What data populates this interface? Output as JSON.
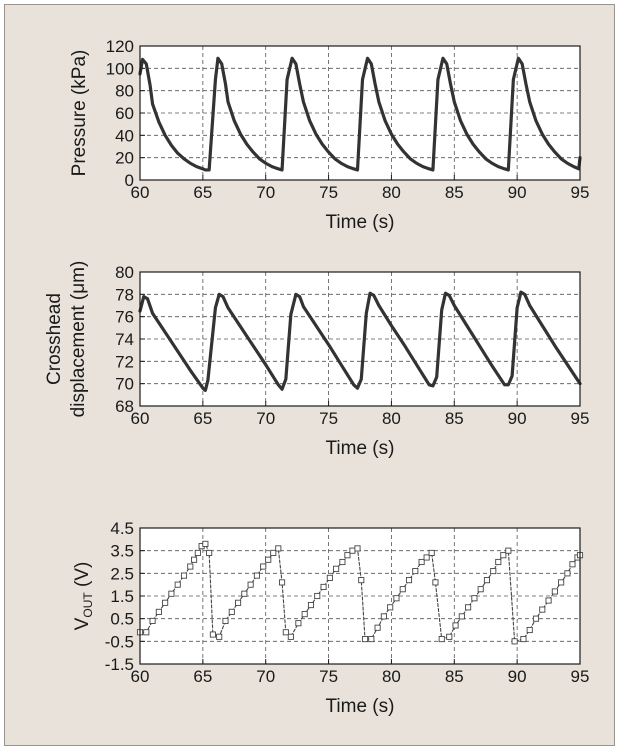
{
  "chart_data": [
    {
      "type": "line",
      "xlabel": "Time (s)",
      "ylabel": "Pressure (kPa)",
      "xlim": [
        60,
        95
      ],
      "ylim": [
        0,
        120
      ],
      "x_ticks": [
        "60",
        "65",
        "70",
        "75",
        "80",
        "85",
        "90",
        "95"
      ],
      "y_ticks": [
        "0",
        "20",
        "40",
        "60",
        "80",
        "100",
        "120"
      ],
      "grid": true,
      "line_color": "#333333",
      "series": [
        {
          "x": [
            60.0,
            60.2,
            60.5,
            60.8,
            61.0,
            61.5,
            62.0,
            62.5,
            63.0,
            63.5,
            64.0,
            64.5,
            65.0,
            65.2,
            65.5,
            66.0,
            66.2,
            66.5,
            66.8,
            67.0,
            67.5,
            68.0,
            68.5,
            69.0,
            69.5,
            70.0,
            70.5,
            71.0,
            71.3,
            71.7,
            72.1,
            72.4,
            72.7,
            73.0,
            73.5,
            74.0,
            74.5,
            75.0,
            75.5,
            76.0,
            76.5,
            77.0,
            77.3,
            77.7,
            78.1,
            78.4,
            78.7,
            79.0,
            79.5,
            80.0,
            80.5,
            81.0,
            81.5,
            82.0,
            82.5,
            83.0,
            83.3,
            83.7,
            84.1,
            84.4,
            84.7,
            85.0,
            85.5,
            86.0,
            86.5,
            87.0,
            87.5,
            88.0,
            88.5,
            89.0,
            89.3,
            89.7,
            90.1,
            90.4,
            90.7,
            91.0,
            91.5,
            92.0,
            92.5,
            93.0,
            93.5,
            94.0,
            94.5,
            94.9,
            95.0
          ],
          "y": [
            95,
            108,
            104,
            85,
            68,
            52,
            40,
            31,
            24,
            19,
            15,
            12,
            10,
            9,
            9,
            90,
            109,
            104,
            86,
            70,
            53,
            41,
            32,
            25,
            19,
            15,
            12,
            10,
            9,
            90,
            109,
            104,
            86,
            70,
            53,
            41,
            32,
            25,
            19,
            15,
            12,
            10,
            9,
            90,
            109,
            104,
            86,
            70,
            53,
            41,
            32,
            25,
            19,
            15,
            12,
            10,
            9,
            90,
            109,
            104,
            86,
            70,
            53,
            41,
            32,
            25,
            19,
            15,
            12,
            10,
            9,
            90,
            109,
            104,
            86,
            70,
            53,
            41,
            32,
            25,
            19,
            15,
            12,
            10,
            20
          ]
        }
      ]
    },
    {
      "type": "line",
      "xlabel": "Time (s)",
      "ylabel": [
        "Crosshead",
        "displacement (μm)"
      ],
      "xlim": [
        60,
        95
      ],
      "ylim": [
        68,
        80
      ],
      "x_ticks": [
        "60",
        "65",
        "70",
        "75",
        "80",
        "85",
        "90",
        "95"
      ],
      "y_ticks": [
        "68",
        "70",
        "72",
        "74",
        "76",
        "78",
        "80"
      ],
      "grid": true,
      "line_color": "#333333",
      "series": [
        {
          "x": [
            60.0,
            60.3,
            60.6,
            61.0,
            62.0,
            63.0,
            64.0,
            65.0,
            65.2,
            65.4,
            66.0,
            66.3,
            66.6,
            67.0,
            68.0,
            69.0,
            70.0,
            71.0,
            71.3,
            71.6,
            72.0,
            72.4,
            72.7,
            73.0,
            74.0,
            75.0,
            76.0,
            77.0,
            77.3,
            77.6,
            78.0,
            78.3,
            78.6,
            79.0,
            80.0,
            81.0,
            82.0,
            83.0,
            83.3,
            83.6,
            84.0,
            84.3,
            84.6,
            85.0,
            86.0,
            87.0,
            88.0,
            89.0,
            89.3,
            89.6,
            90.0,
            90.3,
            90.6,
            91.0,
            92.0,
            93.0,
            94.0,
            95.0
          ],
          "y": [
            76.5,
            77.8,
            77.6,
            76.3,
            74.6,
            72.9,
            71.2,
            69.6,
            69.4,
            70.3,
            76.8,
            78.0,
            77.8,
            76.8,
            75.1,
            73.4,
            71.7,
            69.9,
            69.5,
            70.4,
            76.2,
            78.0,
            77.8,
            76.9,
            75.2,
            73.5,
            71.7,
            69.9,
            69.6,
            70.4,
            76.3,
            78.1,
            77.9,
            77.0,
            75.2,
            73.5,
            71.7,
            69.9,
            69.8,
            70.6,
            76.6,
            78.1,
            77.9,
            77.0,
            75.2,
            73.4,
            71.6,
            69.9,
            69.9,
            70.7,
            76.8,
            78.2,
            78.0,
            77.0,
            75.2,
            73.4,
            71.7,
            70.0
          ]
        }
      ]
    },
    {
      "type": "line",
      "xlabel": "Time (s)",
      "ylabel": {
        "main": "V",
        "sub": "OUT",
        "unit": " (V)"
      },
      "xlim": [
        60,
        95
      ],
      "ylim": [
        -1.5,
        4.5
      ],
      "x_ticks": [
        "60",
        "65",
        "70",
        "75",
        "80",
        "85",
        "90",
        "95"
      ],
      "y_ticks": [
        "-1.5",
        "-0.5",
        "0.5",
        "1.5",
        "2.5",
        "3.5",
        "4.5"
      ],
      "y_tick_values": [
        -1.5,
        -0.5,
        0.5,
        1.5,
        2.5,
        3.5,
        4.5
      ],
      "grid": true,
      "line_style": "dashed",
      "marker": "square",
      "line_color": "#444444",
      "series": [
        {
          "x": [
            60.0,
            60.5,
            61.0,
            61.5,
            62.0,
            62.5,
            63.0,
            63.5,
            64.0,
            64.3,
            64.6,
            64.9,
            65.2,
            65.5,
            65.8,
            66.3,
            66.8,
            67.3,
            67.8,
            68.3,
            68.8,
            69.3,
            69.8,
            70.2,
            70.6,
            71.0,
            71.3,
            71.6,
            72.0,
            72.6,
            73.1,
            73.6,
            74.1,
            74.6,
            75.1,
            75.6,
            76.1,
            76.5,
            76.9,
            77.3,
            77.6,
            77.9,
            78.4,
            78.9,
            79.4,
            79.9,
            80.4,
            80.9,
            81.4,
            81.9,
            82.4,
            82.8,
            83.2,
            83.5,
            84.0,
            84.6,
            85.1,
            85.6,
            86.1,
            86.6,
            87.1,
            87.6,
            88.1,
            88.5,
            88.9,
            89.3,
            89.8,
            90.5,
            91.0,
            91.5,
            92.0,
            92.5,
            93.0,
            93.5,
            94.0,
            94.4,
            94.8,
            95.0
          ],
          "y": [
            -0.1,
            -0.1,
            0.4,
            0.8,
            1.2,
            1.6,
            2.0,
            2.4,
            2.8,
            3.1,
            3.4,
            3.7,
            3.8,
            3.4,
            -0.2,
            -0.3,
            0.4,
            0.8,
            1.2,
            1.6,
            2.0,
            2.4,
            2.8,
            3.1,
            3.4,
            3.6,
            2.1,
            -0.1,
            -0.3,
            0.3,
            0.7,
            1.1,
            1.5,
            1.9,
            2.3,
            2.7,
            3.0,
            3.3,
            3.5,
            3.6,
            2.2,
            -0.4,
            -0.4,
            0.1,
            0.6,
            1.0,
            1.4,
            1.8,
            2.2,
            2.6,
            3.0,
            3.2,
            3.4,
            2.1,
            -0.4,
            -0.3,
            0.2,
            0.6,
            1.0,
            1.4,
            1.8,
            2.2,
            2.6,
            3.0,
            3.3,
            3.5,
            -0.5,
            -0.4,
            0.0,
            0.5,
            0.9,
            1.3,
            1.7,
            2.1,
            2.5,
            2.9,
            3.2,
            3.3
          ]
        }
      ]
    }
  ]
}
